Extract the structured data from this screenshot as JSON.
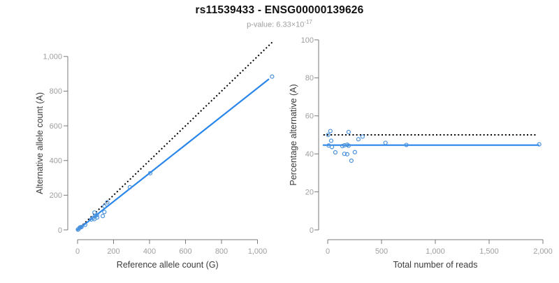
{
  "header": {
    "title": "rs11539433 - ENSG00000139626",
    "subtitle_label": "p-value: ",
    "pvalue_base": "6.33×10",
    "pvalue_exponent": "-17"
  },
  "colors": {
    "accent_blue": "#2a86ea",
    "point_blue": "#4a92de",
    "dotted_black": "#000000",
    "axis_gray": "#7a7a7a",
    "tick_label_gray": "#9e9e9e",
    "axis_title_gray": "#3c3c3c"
  },
  "chart_data": [
    {
      "type": "scatter",
      "name": "allele-count-scatter",
      "xlabel": "Reference allele count (G)",
      "ylabel": "Alternative allele count (A)",
      "xlim": [
        0,
        1100
      ],
      "ylim": [
        0,
        1100
      ],
      "grid": false,
      "xticks": [
        0,
        200,
        400,
        600,
        800,
        1000
      ],
      "xtick_labels": [
        "0",
        "200",
        "400",
        "600",
        "800",
        "1,000"
      ],
      "yticks": [
        0,
        200,
        400,
        600,
        800,
        1000
      ],
      "ytick_labels": [
        "0",
        "200",
        "400",
        "600",
        "800",
        "1,000"
      ],
      "points": [
        [
          2,
          2
        ],
        [
          5,
          4
        ],
        [
          12,
          13
        ],
        [
          17,
          15
        ],
        [
          22,
          17
        ],
        [
          42,
          29
        ],
        [
          76,
          60
        ],
        [
          86,
          69
        ],
        [
          93,
          62
        ],
        [
          100,
          81
        ],
        [
          109,
          72
        ],
        [
          94,
          100
        ],
        [
          108,
          86
        ],
        [
          140,
          80
        ],
        [
          149,
          103
        ],
        [
          149,
          136
        ],
        [
          165,
          159
        ],
        [
          291,
          246
        ],
        [
          404,
          327
        ],
        [
          1081,
          884
        ]
      ],
      "lines": [
        {
          "name": "identity-line",
          "style": "dotted",
          "color_key": "dotted_black",
          "from": [
            0,
            0
          ],
          "to": [
            1085,
            1085
          ]
        },
        {
          "name": "regression-line",
          "style": "solid",
          "color_key": "accent_blue",
          "from": [
            0,
            0
          ],
          "to": [
            1064,
            870
          ]
        }
      ]
    },
    {
      "type": "scatter",
      "name": "percentage-reads-scatter",
      "xlabel": "Total number of reads",
      "ylabel": "Percentage alternative (A)",
      "xlim": [
        0,
        2000
      ],
      "ylim": [
        0,
        100
      ],
      "grid": false,
      "xticks": [
        0,
        500,
        1000,
        1500,
        2000
      ],
      "xtick_labels": [
        "0",
        "500",
        "1,000",
        "1,500",
        "2,000"
      ],
      "yticks": [
        0,
        20,
        40,
        60,
        80,
        100
      ],
      "ytick_labels": [
        "0",
        "20",
        "40",
        "60",
        "80",
        "100"
      ],
      "points": [
        [
          4,
          50
        ],
        [
          9,
          44.4
        ],
        [
          25,
          52
        ],
        [
          32,
          46.9
        ],
        [
          39,
          43.6
        ],
        [
          71,
          40.8
        ],
        [
          136,
          44.1
        ],
        [
          155,
          44.5
        ],
        [
          155,
          40
        ],
        [
          181,
          44.8
        ],
        [
          181,
          39.8
        ],
        [
          194,
          51.5
        ],
        [
          194,
          44.3
        ],
        [
          220,
          36.4
        ],
        [
          252,
          40.9
        ],
        [
          285,
          47.7
        ],
        [
          324,
          49.1
        ],
        [
          537,
          45.8
        ],
        [
          731,
          44.7
        ],
        [
          1965,
          45
        ]
      ],
      "lines": [
        {
          "name": "expected-50pct-line",
          "style": "dotted",
          "color_key": "dotted_black",
          "from": [
            -40,
            50
          ],
          "to": [
            1945,
            50
          ]
        },
        {
          "name": "mean-percentage-line",
          "style": "solid",
          "color_key": "accent_blue",
          "from": [
            -45,
            44.6
          ],
          "to": [
            1966,
            44.6
          ]
        }
      ]
    }
  ]
}
